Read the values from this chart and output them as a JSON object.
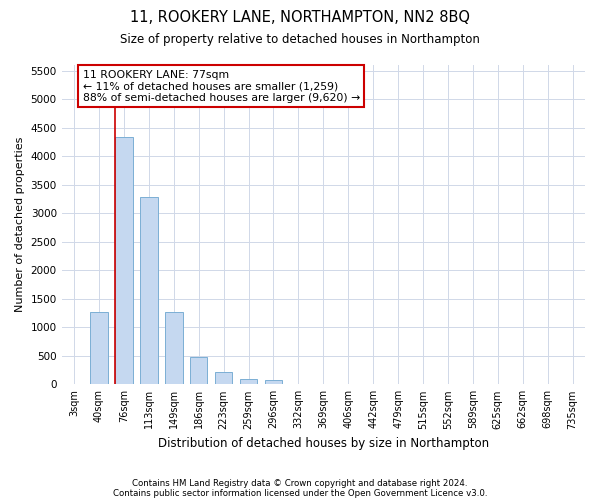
{
  "title1": "11, ROOKERY LANE, NORTHAMPTON, NN2 8BQ",
  "title2": "Size of property relative to detached houses in Northampton",
  "xlabel": "Distribution of detached houses by size in Northampton",
  "ylabel": "Number of detached properties",
  "footer1": "Contains HM Land Registry data © Crown copyright and database right 2024.",
  "footer2": "Contains public sector information licensed under the Open Government Licence v3.0.",
  "annotation_line1": "11 ROOKERY LANE: 77sqm",
  "annotation_line2": "← 11% of detached houses are smaller (1,259)",
  "annotation_line3": "88% of semi-detached houses are larger (9,620) →",
  "bar_color": "#c5d8f0",
  "bar_edge_color": "#7bafd4",
  "grid_color": "#d0d8e8",
  "redline_color": "#cc0000",
  "annotation_box_color": "#cc0000",
  "categories": [
    "3sqm",
    "40sqm",
    "76sqm",
    "113sqm",
    "149sqm",
    "186sqm",
    "223sqm",
    "259sqm",
    "296sqm",
    "332sqm",
    "369sqm",
    "406sqm",
    "442sqm",
    "479sqm",
    "515sqm",
    "552sqm",
    "589sqm",
    "625sqm",
    "662sqm",
    "698sqm",
    "735sqm"
  ],
  "values": [
    0,
    1270,
    4340,
    3280,
    1270,
    480,
    210,
    90,
    70,
    0,
    0,
    0,
    0,
    0,
    0,
    0,
    0,
    0,
    0,
    0,
    0
  ],
  "ylim": [
    0,
    5600
  ],
  "yticks": [
    0,
    500,
    1000,
    1500,
    2000,
    2500,
    3000,
    3500,
    4000,
    4500,
    5000,
    5500
  ],
  "property_size_bar_idx": 2,
  "bar_width": 0.7,
  "figsize": [
    6.0,
    5.0
  ],
  "dpi": 100
}
